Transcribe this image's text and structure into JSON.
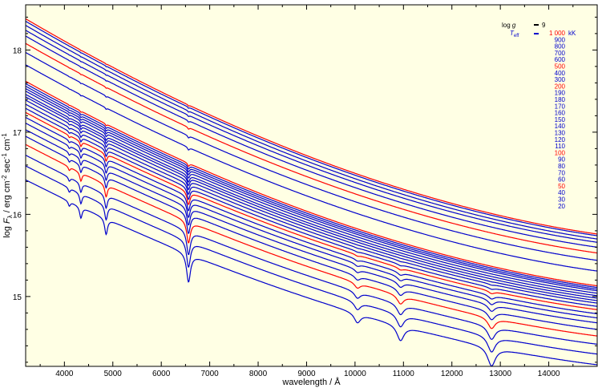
{
  "chart_data": {
    "type": "line",
    "title": "",
    "xlabel": "wavelength / Å",
    "ylabel_parts": [
      "log ",
      "F",
      "λ",
      " / erg cm",
      "-2",
      " sec",
      "-1",
      " cm",
      "-1"
    ],
    "xlim": [
      3200,
      15000
    ],
    "ylim": [
      14.15,
      18.55
    ],
    "x_ticks": [
      4000,
      5000,
      6000,
      7000,
      8000,
      9000,
      10000,
      11000,
      12000,
      13000,
      14000
    ],
    "y_ticks": [
      15,
      16,
      17,
      18
    ],
    "grid": false,
    "background": "#ffffe4",
    "line_colors": {
      "regular": "#0000cc",
      "highlight": "#ff0000"
    },
    "legend": {
      "placement": "top-right",
      "logg_label": "log g",
      "logg_value": "9",
      "teff_label": "T",
      "teff_sub": "eff",
      "unit": "kK",
      "entries": [
        {
          "label": "1 000",
          "highlight": true
        },
        {
          "label": "900",
          "highlight": false
        },
        {
          "label": "800",
          "highlight": false
        },
        {
          "label": "700",
          "highlight": false
        },
        {
          "label": "600",
          "highlight": false
        },
        {
          "label": "500",
          "highlight": true
        },
        {
          "label": "400",
          "highlight": false
        },
        {
          "label": "300",
          "highlight": false
        },
        {
          "label": "200",
          "highlight": true
        },
        {
          "label": "190",
          "highlight": false
        },
        {
          "label": "180",
          "highlight": false
        },
        {
          "label": "170",
          "highlight": false
        },
        {
          "label": "160",
          "highlight": false
        },
        {
          "label": "150",
          "highlight": false
        },
        {
          "label": "140",
          "highlight": false
        },
        {
          "label": "130",
          "highlight": false
        },
        {
          "label": "120",
          "highlight": false
        },
        {
          "label": "110",
          "highlight": false
        },
        {
          "label": "100",
          "highlight": true
        },
        {
          "label": "90",
          "highlight": false
        },
        {
          "label": "80",
          "highlight": false
        },
        {
          "label": "70",
          "highlight": false
        },
        {
          "label": "60",
          "highlight": false
        },
        {
          "label": "50",
          "highlight": true
        },
        {
          "label": "40",
          "highlight": false
        },
        {
          "label": "30",
          "highlight": false
        },
        {
          "label": "20",
          "highlight": false
        }
      ]
    },
    "series": [
      {
        "teff_kK": 1000,
        "highlight": true,
        "y_start": 18.38,
        "y_end": 15.76
      },
      {
        "teff_kK": 900,
        "highlight": false,
        "y_start": 18.35,
        "y_end": 15.74
      },
      {
        "teff_kK": 800,
        "highlight": false,
        "y_start": 18.3,
        "y_end": 15.7
      },
      {
        "teff_kK": 700,
        "highlight": false,
        "y_start": 18.24,
        "y_end": 15.66
      },
      {
        "teff_kK": 600,
        "highlight": false,
        "y_start": 18.17,
        "y_end": 15.6
      },
      {
        "teff_kK": 500,
        "highlight": true,
        "y_start": 18.08,
        "y_end": 15.53
      },
      {
        "teff_kK": 400,
        "highlight": false,
        "y_start": 17.97,
        "y_end": 15.44
      },
      {
        "teff_kK": 300,
        "highlight": false,
        "y_start": 17.82,
        "y_end": 15.31
      },
      {
        "teff_kK": 200,
        "highlight": true,
        "y_start": 17.62,
        "y_end": 15.13
      },
      {
        "teff_kK": 190,
        "highlight": false,
        "y_start": 17.59,
        "y_end": 15.11
      },
      {
        "teff_kK": 180,
        "highlight": false,
        "y_start": 17.56,
        "y_end": 15.09
      },
      {
        "teff_kK": 170,
        "highlight": false,
        "y_start": 17.53,
        "y_end": 15.07
      },
      {
        "teff_kK": 160,
        "highlight": false,
        "y_start": 17.5,
        "y_end": 15.04
      },
      {
        "teff_kK": 150,
        "highlight": false,
        "y_start": 17.46,
        "y_end": 15.01
      },
      {
        "teff_kK": 140,
        "highlight": false,
        "y_start": 17.43,
        "y_end": 14.98
      },
      {
        "teff_kK": 130,
        "highlight": false,
        "y_start": 17.39,
        "y_end": 14.95
      },
      {
        "teff_kK": 120,
        "highlight": false,
        "y_start": 17.34,
        "y_end": 14.92
      },
      {
        "teff_kK": 110,
        "highlight": false,
        "y_start": 17.29,
        "y_end": 14.88
      },
      {
        "teff_kK": 100,
        "highlight": true,
        "y_start": 17.24,
        "y_end": 14.84
      },
      {
        "teff_kK": 90,
        "highlight": false,
        "y_start": 17.18,
        "y_end": 14.79
      },
      {
        "teff_kK": 80,
        "highlight": false,
        "y_start": 17.11,
        "y_end": 14.74
      },
      {
        "teff_kK": 70,
        "highlight": false,
        "y_start": 17.03,
        "y_end": 14.68
      },
      {
        "teff_kK": 60,
        "highlight": false,
        "y_start": 16.95,
        "y_end": 14.6
      },
      {
        "teff_kK": 50,
        "highlight": true,
        "y_start": 16.85,
        "y_end": 14.52
      },
      {
        "teff_kK": 40,
        "highlight": false,
        "y_start": 16.72,
        "y_end": 14.42
      },
      {
        "teff_kK": 30,
        "highlight": false,
        "y_start": 16.59,
        "y_end": 14.3
      },
      {
        "teff_kK": 20,
        "highlight": false,
        "y_start": 16.42,
        "y_end": 14.17
      }
    ]
  }
}
